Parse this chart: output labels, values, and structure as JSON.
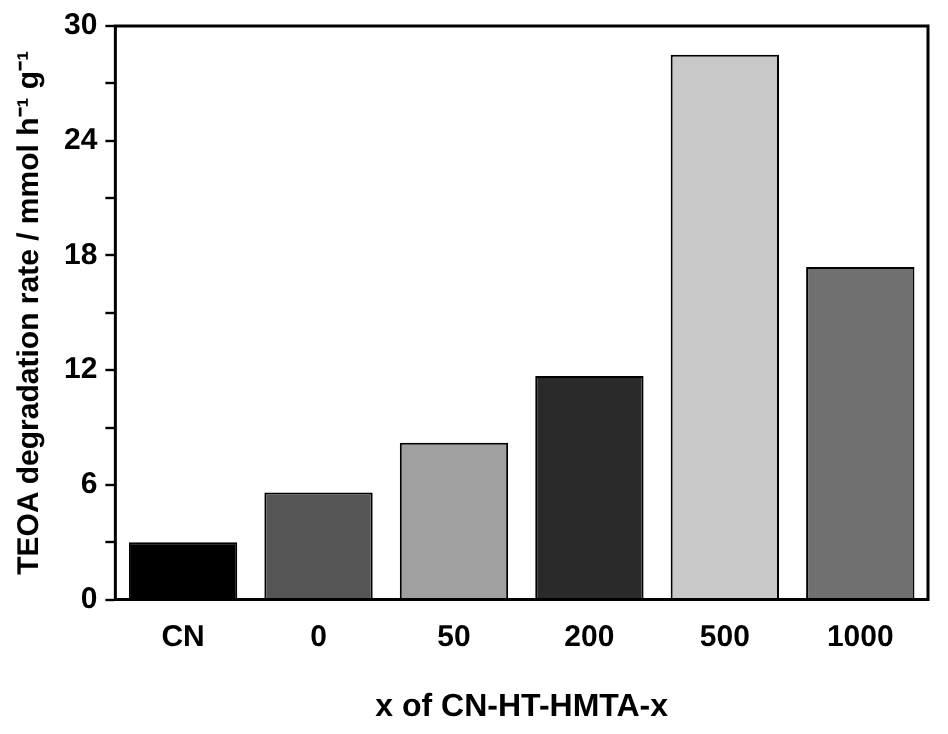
{
  "chart_data": {
    "type": "bar",
    "xlabel": "x of CN-HT-HMTA-x",
    "ylabel": "TEOA degradation rate / mmol h⁻¹ g⁻¹",
    "categories": [
      "CN",
      "0",
      "50",
      "200",
      "500",
      "1000"
    ],
    "values": [
      3.0,
      5.6,
      8.2,
      11.7,
      28.5,
      17.4
    ],
    "colors": [
      "#000000",
      "#555555",
      "#a0a0a0",
      "#2a2a2a",
      "#c8c8c8",
      "#707070"
    ],
    "ylim": [
      0,
      30
    ],
    "yticks": [
      0,
      {
        "value": 3,
        "label": null
      },
      6,
      {
        "value": 9,
        "label": null
      },
      12,
      {
        "value": 15,
        "label": null
      },
      18,
      {
        "value": 21,
        "label": null
      },
      24,
      {
        "value": 27,
        "label": null
      },
      30
    ],
    "grid": false,
    "legend": false
  }
}
